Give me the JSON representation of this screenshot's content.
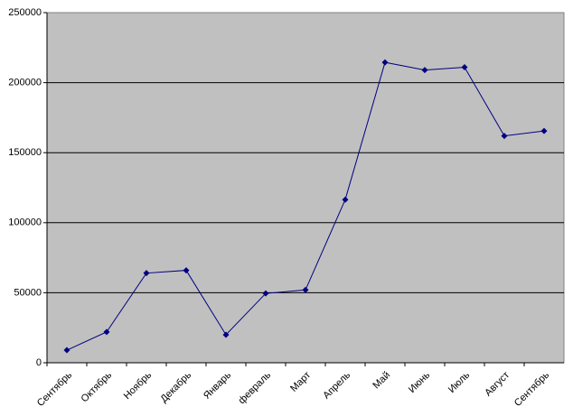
{
  "chart_data": {
    "type": "line",
    "categories": [
      "Сентябрь",
      "Октябрь",
      "Ноябрь",
      "Декабрь",
      "Январь",
      "февраль",
      "Март",
      "Апрель",
      "Май",
      "Июнь",
      "Июль",
      "Август",
      "Сентябрь"
    ],
    "series": [
      {
        "color": "#000080",
        "values": [
          9000,
          22000,
          64000,
          66000,
          20000,
          49500,
          52000,
          116500,
          214500,
          209000,
          211000,
          162000,
          165500
        ]
      }
    ],
    "ylim": [
      0,
      250000
    ],
    "yticks": [
      0,
      50000,
      100000,
      150000,
      200000,
      250000
    ],
    "grid": true
  }
}
